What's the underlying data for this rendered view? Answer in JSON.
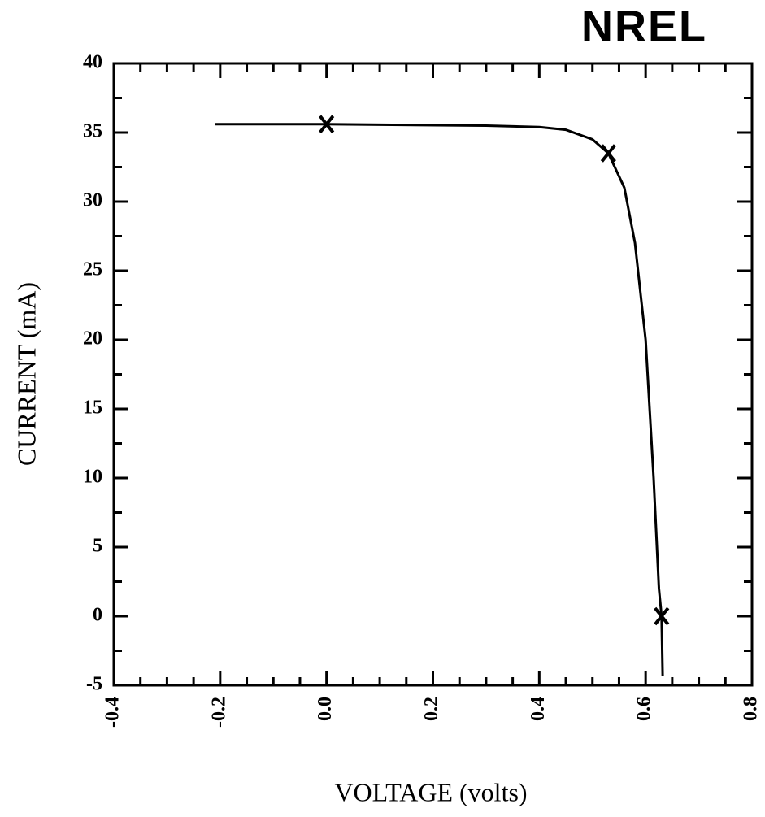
{
  "chart_data": {
    "type": "line",
    "logo": "NREL",
    "xlabel": "VOLTAGE (volts)",
    "ylabel": "CURRENT (mA)",
    "xlim": [
      -0.4,
      0.8
    ],
    "xticks": [
      -0.4,
      -0.2,
      {
        "value": 0,
        "label": "0.0"
      },
      0.2,
      0.4,
      0.6,
      0.8
    ],
    "ylim": [
      -5,
      40
    ],
    "yticks": [
      -5,
      0,
      5,
      10,
      15,
      20,
      25,
      30,
      35,
      40
    ],
    "color": "#000000",
    "curve": {
      "x": [
        -0.21,
        0,
        0.3,
        0.4,
        0.45,
        0.5,
        0.53,
        0.56,
        0.58,
        0.6,
        0.615,
        0.625,
        0.63,
        0.632
      ],
      "y": [
        35.6,
        35.6,
        35.5,
        35.4,
        35.2,
        34.5,
        33.5,
        31,
        27,
        20,
        10,
        2,
        0,
        -4.3
      ]
    },
    "markers": {
      "x": [
        0,
        0.53,
        0.63
      ],
      "y": [
        35.6,
        33.5,
        0
      ]
    }
  }
}
